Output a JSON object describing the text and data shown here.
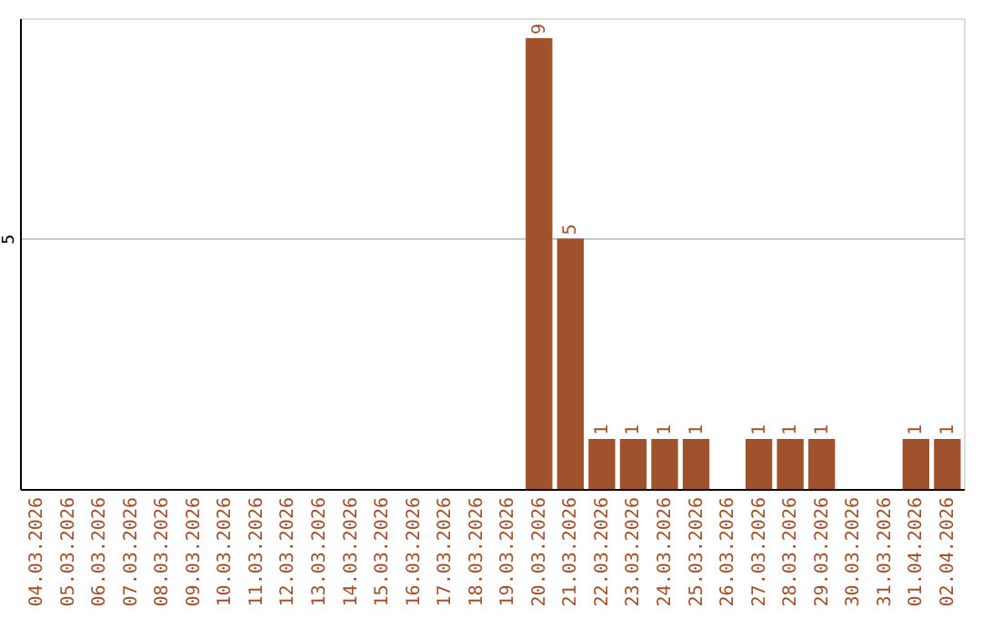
{
  "chart_data": {
    "type": "bar",
    "categories": [
      "04.03.2026",
      "05.03.2026",
      "06.03.2026",
      "07.03.2026",
      "08.03.2026",
      "09.03.2026",
      "10.03.2026",
      "11.03.2026",
      "12.03.2026",
      "13.03.2026",
      "14.03.2026",
      "15.03.2026",
      "16.03.2026",
      "17.03.2026",
      "18.03.2026",
      "19.03.2026",
      "20.03.2026",
      "21.03.2026",
      "22.03.2026",
      "23.03.2026",
      "24.03.2026",
      "25.03.2026",
      "26.03.2026",
      "27.03.2026",
      "28.03.2026",
      "29.03.2026",
      "30.03.2026",
      "31.03.2026",
      "01.04.2026",
      "02.04.2026"
    ],
    "values": [
      null,
      null,
      null,
      null,
      null,
      null,
      null,
      null,
      null,
      null,
      null,
      null,
      null,
      null,
      null,
      null,
      9,
      5,
      1,
      1,
      1,
      1,
      null,
      1,
      1,
      1,
      null,
      null,
      1,
      1
    ],
    "color": "#a0522d",
    "ylim": [
      0,
      9.4
    ],
    "yticks": [
      5
    ],
    "grid": "y",
    "data_labels": true
  }
}
